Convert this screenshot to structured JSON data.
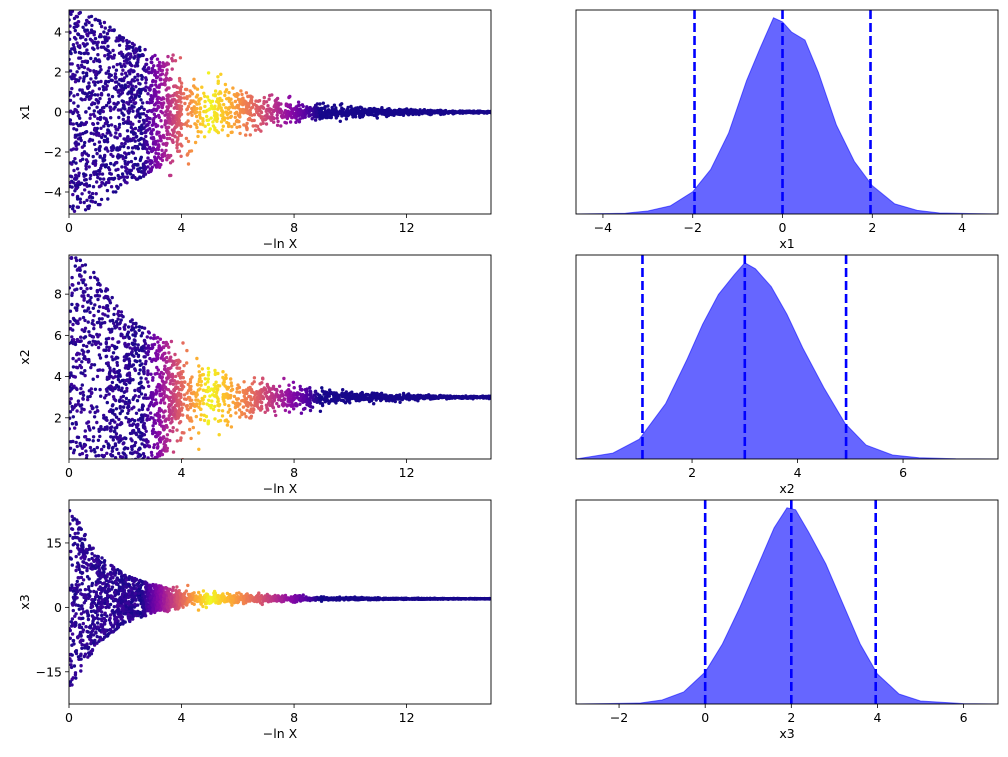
{
  "chart_data": [
    {
      "type": "scatter",
      "panel": "trace",
      "xlabel": "−ln X",
      "ylabel": "x1",
      "xlim": [
        0,
        15
      ],
      "ylim": [
        -5.1,
        5.1
      ],
      "xticks": [
        0,
        4,
        8,
        12
      ],
      "yticks": [
        -4,
        -2,
        0,
        2,
        4
      ],
      "colormap": "plasma",
      "center": 0.0,
      "spread": [
        [
          0,
          5.5
        ],
        [
          1,
          5.0
        ],
        [
          2,
          3.9
        ],
        [
          3,
          3.1
        ],
        [
          4,
          2.4
        ],
        [
          5,
          1.8
        ],
        [
          6,
          1.3
        ],
        [
          7,
          0.9
        ],
        [
          8,
          0.65
        ],
        [
          9,
          0.45
        ],
        [
          10,
          0.3
        ],
        [
          11,
          0.22
        ],
        [
          12,
          0.15
        ],
        [
          13,
          0.1
        ],
        [
          14,
          0.07
        ],
        [
          15,
          0.05
        ]
      ]
    },
    {
      "type": "area",
      "panel": "posterior",
      "xlabel": "x1",
      "ylabel": "",
      "xlim": [
        -4.6,
        4.8
      ],
      "xticks": [
        -4,
        -2,
        0,
        2,
        4
      ],
      "x": [
        -4.6,
        -3.5,
        -3.0,
        -2.5,
        -2.0,
        -1.6,
        -1.2,
        -0.8,
        -0.5,
        -0.2,
        0.0,
        0.2,
        0.5,
        0.8,
        1.2,
        1.6,
        2.0,
        2.5,
        3.0,
        3.5,
        4.8
      ],
      "values": [
        0.0,
        0.004,
        0.015,
        0.04,
        0.11,
        0.22,
        0.4,
        0.66,
        0.82,
        0.97,
        0.95,
        0.9,
        0.86,
        0.7,
        0.44,
        0.26,
        0.14,
        0.05,
        0.018,
        0.005,
        0.0
      ],
      "quantile_lines": [
        -1.96,
        0.0,
        1.96
      ],
      "fill_color": "#6666ff",
      "line_color": "#0000ff"
    },
    {
      "type": "scatter",
      "panel": "trace",
      "xlabel": "−ln X",
      "ylabel": "x2",
      "xlim": [
        0,
        15
      ],
      "ylim": [
        0.0,
        9.9
      ],
      "xticks": [
        0,
        4,
        8,
        12
      ],
      "yticks": [
        2,
        4,
        6,
        8
      ],
      "colormap": "plasma",
      "center": 3.0,
      "spread": [
        [
          0,
          7.5
        ],
        [
          1,
          6.3
        ],
        [
          2,
          4.5
        ],
        [
          3,
          3.2
        ],
        [
          4,
          2.4
        ],
        [
          5,
          1.8
        ],
        [
          6,
          1.3
        ],
        [
          7,
          0.9
        ],
        [
          8,
          0.65
        ],
        [
          9,
          0.45
        ],
        [
          10,
          0.3
        ],
        [
          11,
          0.22
        ],
        [
          12,
          0.15
        ],
        [
          13,
          0.1
        ],
        [
          14,
          0.07
        ],
        [
          15,
          0.05
        ]
      ]
    },
    {
      "type": "area",
      "panel": "posterior",
      "xlabel": "x2",
      "ylabel": "",
      "xlim": [
        -0.2,
        7.8
      ],
      "xticks": [
        2,
        4,
        6
      ],
      "x": [
        -0.2,
        0.5,
        1.0,
        1.5,
        1.9,
        2.2,
        2.5,
        2.8,
        3.0,
        3.2,
        3.5,
        3.8,
        4.1,
        4.5,
        4.9,
        5.3,
        5.8,
        6.3,
        7.0,
        7.8
      ],
      "values": [
        0.0,
        0.03,
        0.1,
        0.28,
        0.5,
        0.68,
        0.83,
        0.93,
        0.99,
        0.96,
        0.87,
        0.73,
        0.56,
        0.36,
        0.18,
        0.07,
        0.02,
        0.006,
        0.001,
        0.0
      ],
      "quantile_lines": [
        1.06,
        3.0,
        4.92
      ],
      "fill_color": "#6666ff",
      "line_color": "#0000ff"
    },
    {
      "type": "scatter",
      "panel": "trace",
      "xlabel": "−ln X",
      "ylabel": "x3",
      "xlim": [
        0,
        15
      ],
      "ylim": [
        -22.5,
        25.0
      ],
      "xticks": [
        0,
        4,
        8,
        12
      ],
      "yticks": [
        -15,
        0,
        15
      ],
      "colormap": "plasma",
      "center": 2.0,
      "spread": [
        [
          0,
          23.0
        ],
        [
          1,
          11.0
        ],
        [
          2,
          6.0
        ],
        [
          3,
          3.5
        ],
        [
          4,
          2.3
        ],
        [
          5,
          1.7
        ],
        [
          6,
          1.3
        ],
        [
          7,
          0.9
        ],
        [
          8,
          0.65
        ],
        [
          9,
          0.45
        ],
        [
          10,
          0.3
        ],
        [
          11,
          0.22
        ],
        [
          12,
          0.15
        ],
        [
          13,
          0.1
        ],
        [
          14,
          0.07
        ],
        [
          15,
          0.05
        ]
      ]
    },
    {
      "type": "area",
      "panel": "posterior",
      "xlabel": "x3",
      "ylabel": "",
      "xlim": [
        -3.0,
        6.8
      ],
      "xticks": [
        -2,
        0,
        2,
        4,
        6
      ],
      "x": [
        -3.0,
        -1.5,
        -1.0,
        -0.5,
        0.0,
        0.4,
        0.8,
        1.2,
        1.6,
        1.9,
        2.1,
        2.4,
        2.8,
        3.2,
        3.6,
        4.0,
        4.5,
        5.0,
        6.0,
        6.8
      ],
      "values": [
        0.0,
        0.005,
        0.02,
        0.06,
        0.16,
        0.3,
        0.48,
        0.68,
        0.88,
        0.98,
        0.97,
        0.86,
        0.7,
        0.5,
        0.3,
        0.15,
        0.05,
        0.015,
        0.002,
        0.0
      ],
      "quantile_lines": [
        0.0,
        2.0,
        3.96
      ],
      "fill_color": "#6666ff",
      "line_color": "#0000ff"
    }
  ]
}
